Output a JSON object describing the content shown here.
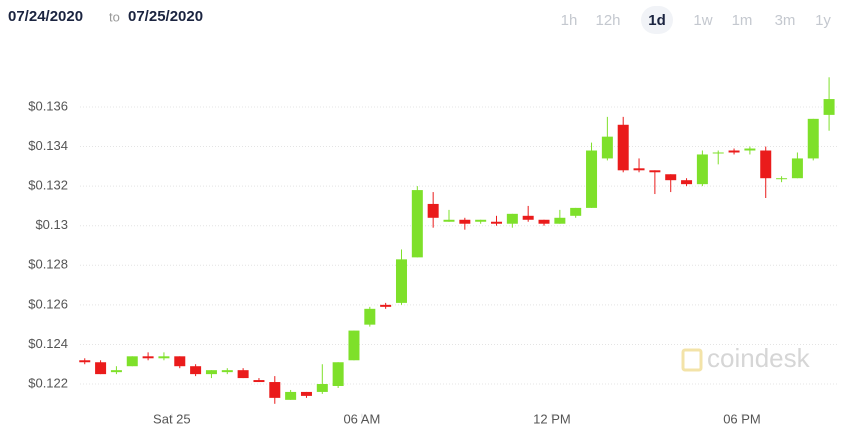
{
  "header": {
    "start_date": "07/24/2020",
    "separator": "to",
    "end_date": "07/25/2020",
    "ranges": [
      "1h",
      "12h",
      "1d",
      "1w",
      "1m",
      "3m",
      "1y"
    ],
    "active_range": "1d"
  },
  "watermark": "coindesk",
  "chart_data": {
    "type": "candlestick",
    "x": [
      -2.75,
      -2.25,
      -1.75,
      -1.25,
      -0.75,
      -0.25,
      0.25,
      0.75,
      1.25,
      1.75,
      2.25,
      2.75,
      3.25,
      3.75,
      4.25,
      4.75,
      5.25,
      5.75,
      6.25,
      6.75,
      7.25,
      7.75,
      8.25,
      8.75,
      9.25,
      9.75,
      10.25,
      10.75,
      11.25,
      11.75,
      12.25,
      12.75,
      13.25,
      13.75,
      14.25,
      14.75,
      15.25,
      15.75,
      16.25,
      16.75,
      17.25,
      17.75,
      18.25,
      18.75,
      19.25,
      19.75,
      20.25,
      20.75
    ],
    "open": [
      0.1232,
      0.1231,
      0.1226,
      0.1229,
      0.1234,
      0.1233,
      0.1234,
      0.1229,
      0.1225,
      0.1226,
      0.1227,
      0.1222,
      0.1221,
      0.1212,
      0.1216,
      0.1216,
      0.1219,
      0.1232,
      0.125,
      0.126,
      0.1261,
      0.1284,
      0.1311,
      0.1302,
      0.1303,
      0.1302,
      0.1302,
      0.1301,
      0.1305,
      0.1303,
      0.1301,
      0.1305,
      0.1309,
      0.1334,
      0.1351,
      0.1329,
      0.1328,
      0.1326,
      0.1323,
      0.1321,
      0.1337,
      0.1338,
      0.1338,
      0.1338,
      0.1324,
      0.1324,
      0.1334,
      0.1356
    ],
    "high": [
      0.1233,
      0.1232,
      0.1229,
      0.1234,
      0.1236,
      0.1236,
      0.1234,
      0.123,
      0.1227,
      0.1228,
      0.1228,
      0.1223,
      0.1224,
      0.1217,
      0.1216,
      0.123,
      0.1231,
      0.1247,
      0.1259,
      0.1261,
      0.1288,
      0.132,
      0.1317,
      0.1308,
      0.1304,
      0.1303,
      0.1305,
      0.1306,
      0.131,
      0.1303,
      0.1308,
      0.1309,
      0.1342,
      0.1355,
      0.1355,
      0.1334,
      0.1328,
      0.1326,
      0.1324,
      0.1338,
      0.1338,
      0.1339,
      0.134,
      0.134,
      0.1325,
      0.1337,
      0.1354,
      0.1375
    ],
    "low": [
      0.123,
      0.1225,
      0.1225,
      0.1229,
      0.1232,
      0.1232,
      0.1228,
      0.1224,
      0.1223,
      0.1225,
      0.1223,
      0.1221,
      0.121,
      0.1212,
      0.1213,
      0.1215,
      0.1218,
      0.1232,
      0.1249,
      0.1258,
      0.126,
      0.1284,
      0.1299,
      0.1302,
      0.1298,
      0.1301,
      0.13,
      0.1299,
      0.1302,
      0.13,
      0.1301,
      0.1304,
      0.1309,
      0.1333,
      0.1327,
      0.1327,
      0.1316,
      0.1317,
      0.132,
      0.132,
      0.1331,
      0.1336,
      0.1336,
      0.1314,
      0.1322,
      0.1324,
      0.1333,
      0.1348
    ],
    "close": [
      0.1231,
      0.1225,
      0.1227,
      0.1234,
      0.1233,
      0.1234,
      0.1229,
      0.1225,
      0.1227,
      0.1227,
      0.1223,
      0.1221,
      0.1213,
      0.1216,
      0.1214,
      0.122,
      0.1231,
      0.1247,
      0.1258,
      0.1259,
      0.1283,
      0.1318,
      0.1304,
      0.1303,
      0.1301,
      0.1303,
      0.1301,
      0.1306,
      0.1303,
      0.1301,
      0.1304,
      0.1309,
      0.1338,
      0.1345,
      0.1328,
      0.1328,
      0.1327,
      0.1323,
      0.1321,
      0.1336,
      0.1337,
      0.1337,
      0.1339,
      0.1324,
      0.1324,
      0.1334,
      0.1354,
      0.1364
    ],
    "up_color": "#7ee02a",
    "down_color": "#ea1b1b",
    "xlim": [
      -2.9,
      21.0
    ],
    "xticks": [
      {
        "value": 0,
        "label": "Sat 25"
      },
      {
        "value": 6,
        "label": "06 AM"
      },
      {
        "value": 12,
        "label": "12 PM"
      },
      {
        "value": 18,
        "label": "06 PM"
      }
    ],
    "ylim": [
      0.1205,
      0.1385
    ],
    "yticks": [
      {
        "value": 0.122,
        "label": "$0.122"
      },
      {
        "value": 0.124,
        "label": "$0.124"
      },
      {
        "value": 0.126,
        "label": "$0.126"
      },
      {
        "value": 0.128,
        "label": "$0.128"
      },
      {
        "value": 0.13,
        "label": "$0.13"
      },
      {
        "value": 0.132,
        "label": "$0.132"
      },
      {
        "value": 0.134,
        "label": "$0.134"
      },
      {
        "value": 0.136,
        "label": "$0.136"
      }
    ],
    "grid": true
  }
}
